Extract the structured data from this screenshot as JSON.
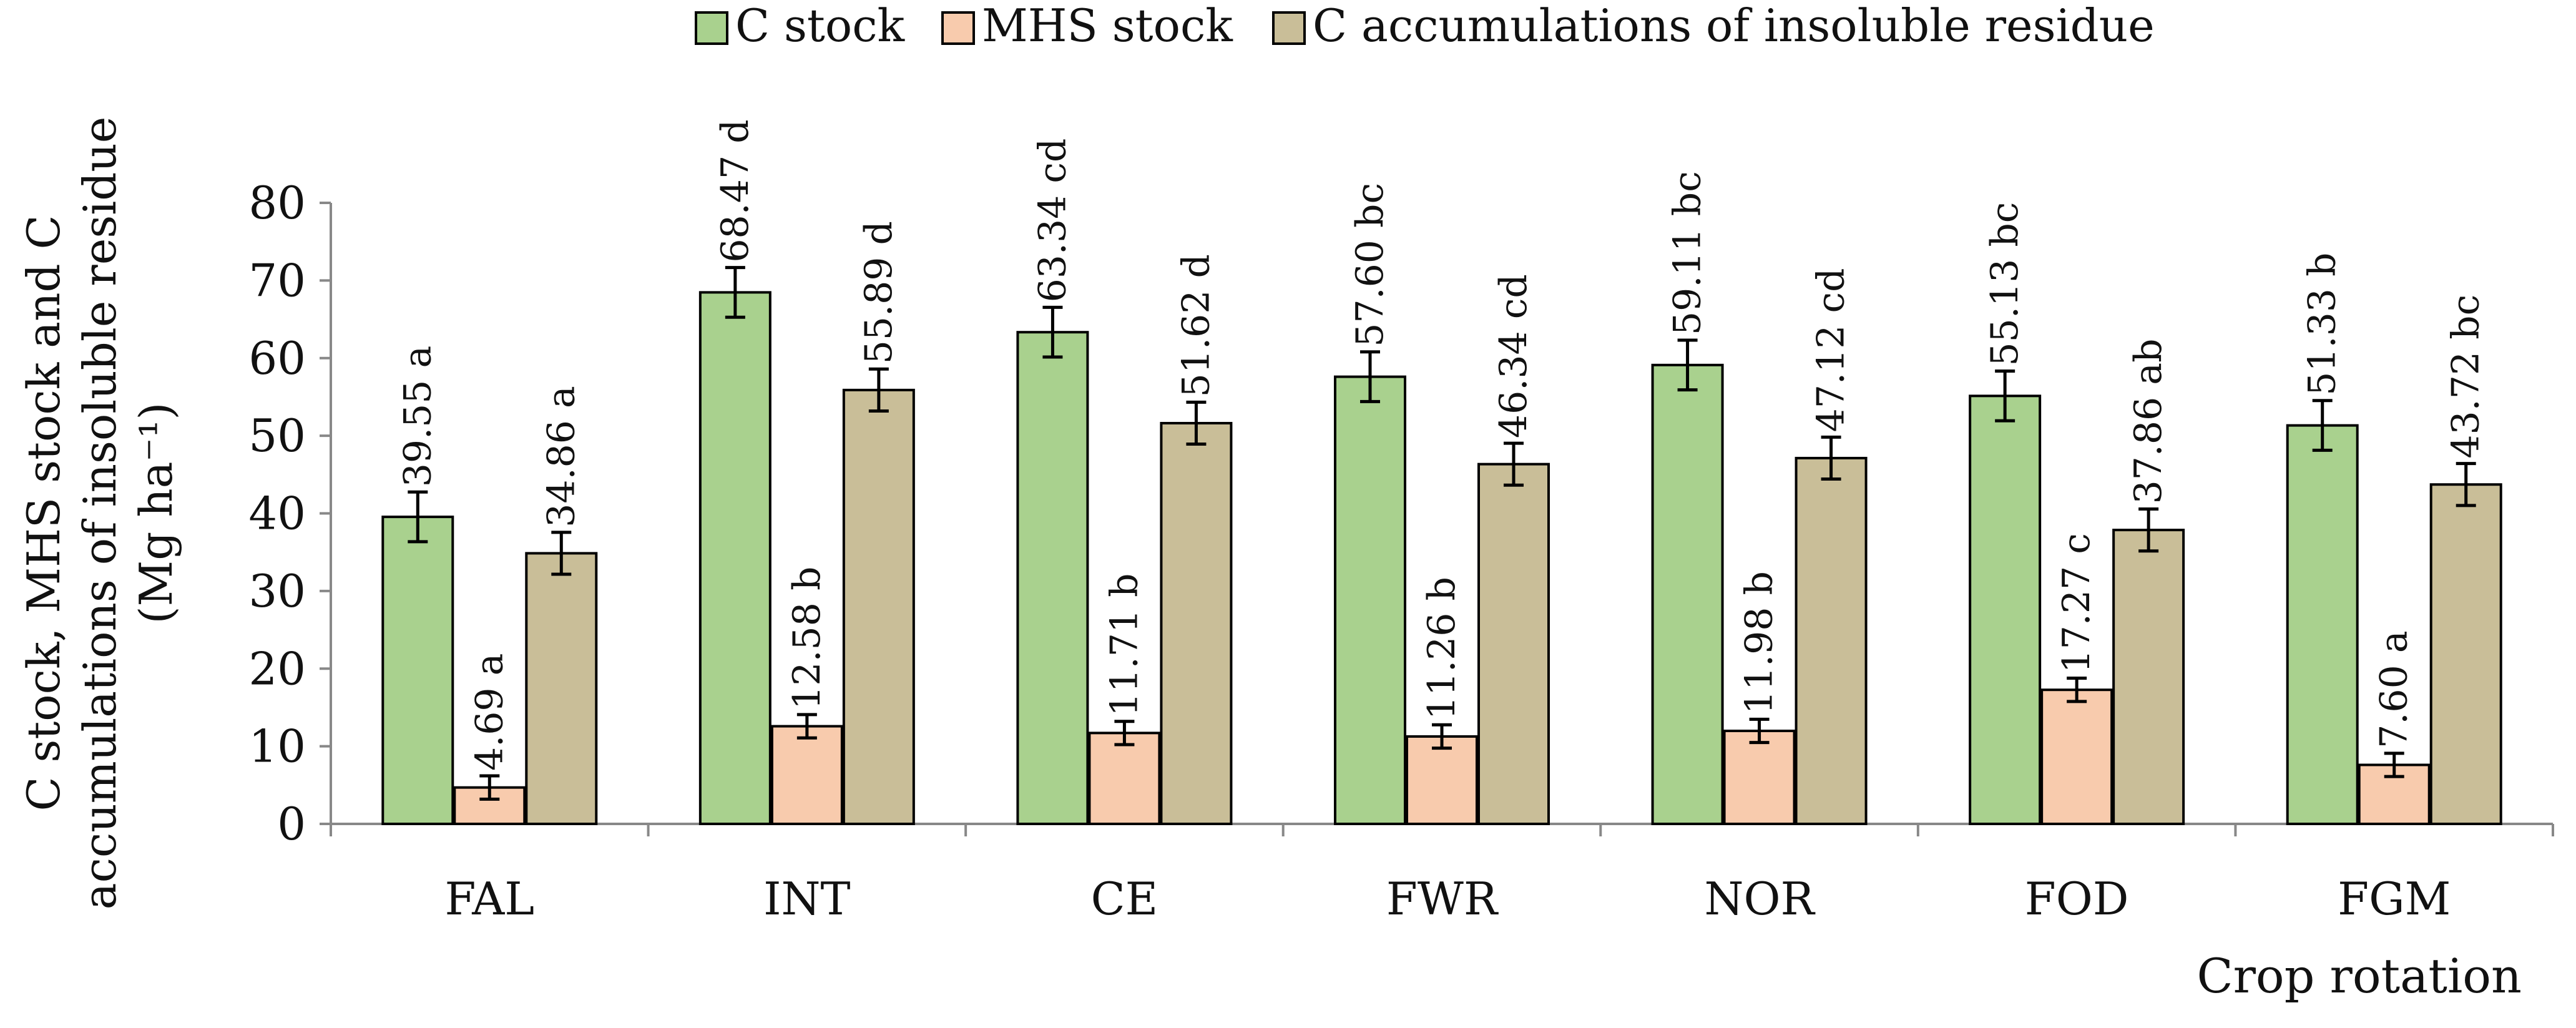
{
  "chart_data": {
    "type": "bar",
    "title": "",
    "xlabel": "Crop rotation",
    "ylabel_lines": [
      "C stock, MHS stock and C",
      "accumulations of insoluble residue",
      "(Mg ha⁻¹)"
    ],
    "ylim": [
      0,
      80
    ],
    "yticks": [
      0,
      10,
      20,
      30,
      40,
      50,
      60,
      70,
      80
    ],
    "legend_position": "top-center",
    "grid": false,
    "categories": [
      "FAL",
      "INT",
      "CE",
      "FWR",
      "NOR",
      "FOD",
      "FGM"
    ],
    "series": [
      {
        "name": "C stock",
        "color": "#A9D18E",
        "values": [
          39.55,
          68.47,
          63.34,
          57.6,
          59.11,
          55.13,
          51.33
        ],
        "errors": [
          3.2,
          3.2,
          3.2,
          3.2,
          3.2,
          3.2,
          3.2
        ],
        "labels": [
          "39.55 a",
          "68.47 d",
          "63.34 cd",
          "57.60 bc",
          "59.11 bc",
          "55.13 bc",
          "51.33 b"
        ]
      },
      {
        "name": "MHS stock",
        "color": "#F8CBAD",
        "values": [
          4.69,
          12.58,
          11.71,
          11.26,
          11.98,
          17.27,
          7.6
        ],
        "errors": [
          1.5,
          1.5,
          1.5,
          1.5,
          1.5,
          1.5,
          1.5
        ],
        "labels": [
          "4.69 a",
          "12.58 b",
          "11.71 b",
          "11.26 b",
          "11.98 b",
          "17.27 c",
          "7.60 a"
        ]
      },
      {
        "name": "C accumulations of insoluble residue",
        "color": "#C9BE98",
        "values": [
          34.86,
          55.89,
          51.62,
          46.34,
          47.12,
          37.86,
          43.72
        ],
        "errors": [
          2.7,
          2.7,
          2.7,
          2.7,
          2.7,
          2.7,
          2.7
        ],
        "labels": [
          "34.86 a",
          "55.89 d",
          "51.62 d",
          "46.34 cd",
          "47.12 cd",
          "37.86 ab",
          "43.72 bc"
        ]
      }
    ]
  }
}
